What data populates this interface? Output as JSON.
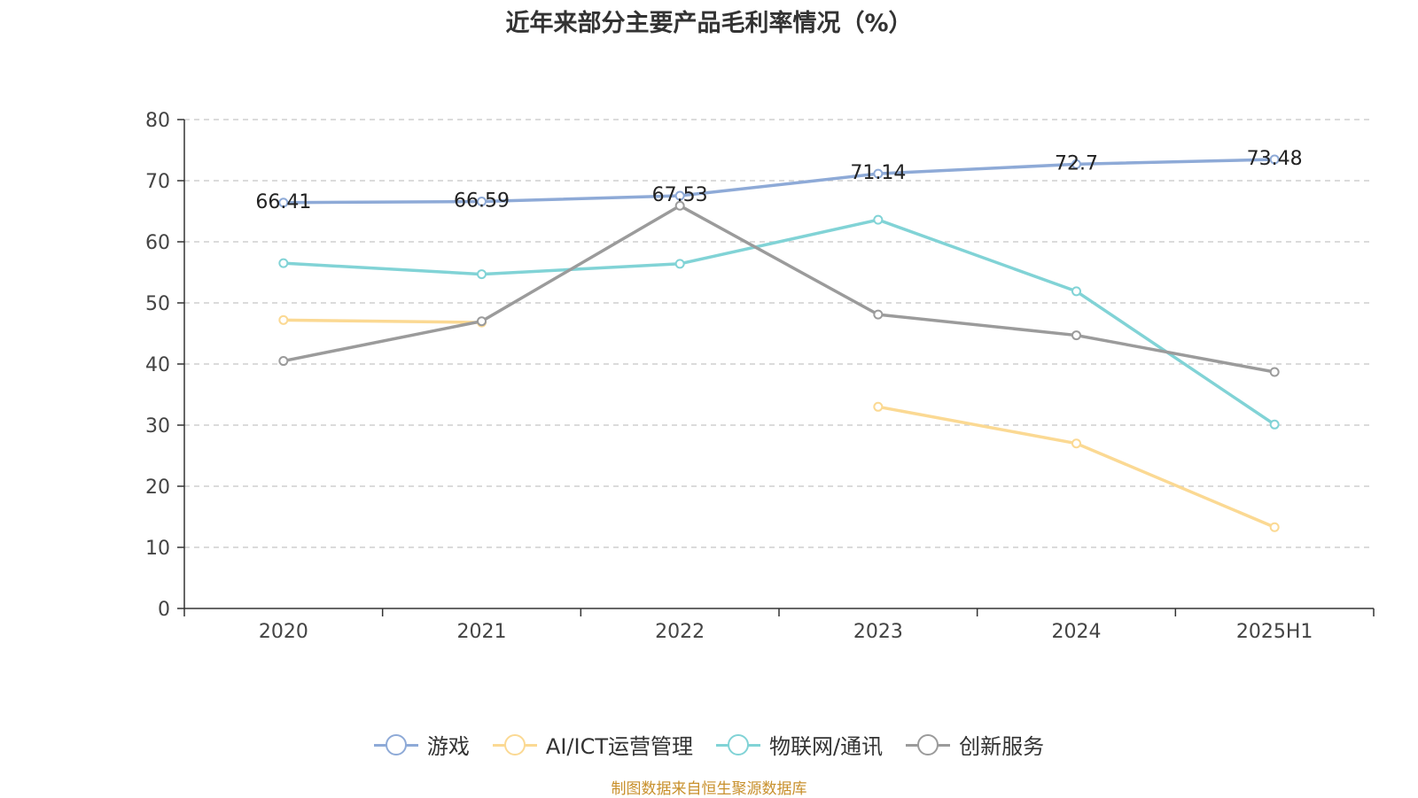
{
  "title": "近年来部分主要产品毛利率情况（%）",
  "source_note": "制图数据来自恒生聚源数据库",
  "chart_data": {
    "type": "line",
    "categories": [
      "2020",
      "2021",
      "2022",
      "2023",
      "2024",
      "2025H1"
    ],
    "ylim": [
      0,
      80
    ],
    "yticks": [
      0,
      10,
      20,
      30,
      40,
      50,
      60,
      70,
      80
    ],
    "grid": true,
    "legend_position": "bottom",
    "series": [
      {
        "name": "游戏",
        "color": "#8eaad7",
        "values": [
          66.41,
          66.59,
          67.53,
          71.14,
          72.7,
          73.48
        ],
        "labels": [
          "66.41",
          "66.59",
          "67.53",
          "71.14",
          "72.7",
          "73.48"
        ]
      },
      {
        "name": "AI/ICT运营管理",
        "color": "#fbd993",
        "values": [
          47.2,
          46.8,
          null,
          33.0,
          27.0,
          13.3
        ]
      },
      {
        "name": "物联网/通讯",
        "color": "#81d3d6",
        "values": [
          56.5,
          54.7,
          56.4,
          63.6,
          51.9,
          30.1
        ]
      },
      {
        "name": "创新服务",
        "color": "#9b9b9b",
        "values": [
          40.5,
          47.0,
          65.9,
          48.1,
          44.7,
          38.7
        ]
      }
    ]
  }
}
